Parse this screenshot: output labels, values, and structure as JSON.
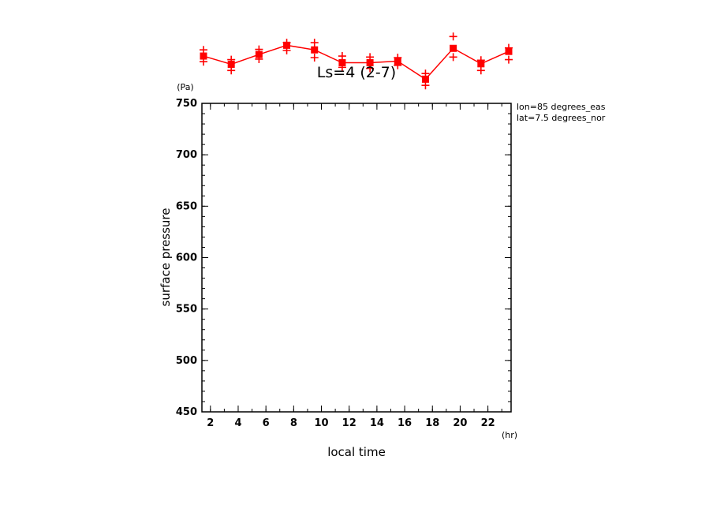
{
  "chart_data": {
    "type": "line",
    "title": "Ls=4 (2-7)",
    "xlabel": "local time",
    "ylabel": "surface pressure",
    "x_unit": "(hr)",
    "y_unit": "(Pa)",
    "annotations": [
      "lon=85 degrees_eas",
      "lat=7.5 degrees_nor"
    ],
    "xlim": [
      1.5,
      23.5
    ],
    "ylim": [
      450,
      750
    ],
    "x_ticks": [
      2,
      4,
      6,
      8,
      10,
      12,
      14,
      16,
      18,
      20,
      22
    ],
    "y_ticks": [
      450,
      500,
      550,
      600,
      650,
      700,
      750
    ],
    "grid": false,
    "color": "#ff0000",
    "series": [
      {
        "x": [
          1.5,
          3.5,
          5.5,
          7.5,
          9.5,
          11.5,
          13.5,
          15.5,
          17.5,
          19.5,
          21.5,
          23.5
        ],
        "values": [
          796.0,
          788.0,
          797.5,
          806.5,
          802.0,
          789.5,
          789.5,
          791.0,
          773.5,
          803.5,
          788.5,
          800.5
        ],
        "upper": [
          802.0,
          792.5,
          802.5,
          809.0,
          809.0,
          796.0,
          795.0,
          794.5,
          779.0,
          815.0,
          792.0,
          804.0
        ],
        "lower": [
          790.5,
          782.0,
          793.0,
          801.5,
          794.5,
          785.0,
          784.0,
          787.0,
          767.5,
          795.0,
          782.0,
          792.5
        ]
      }
    ]
  }
}
